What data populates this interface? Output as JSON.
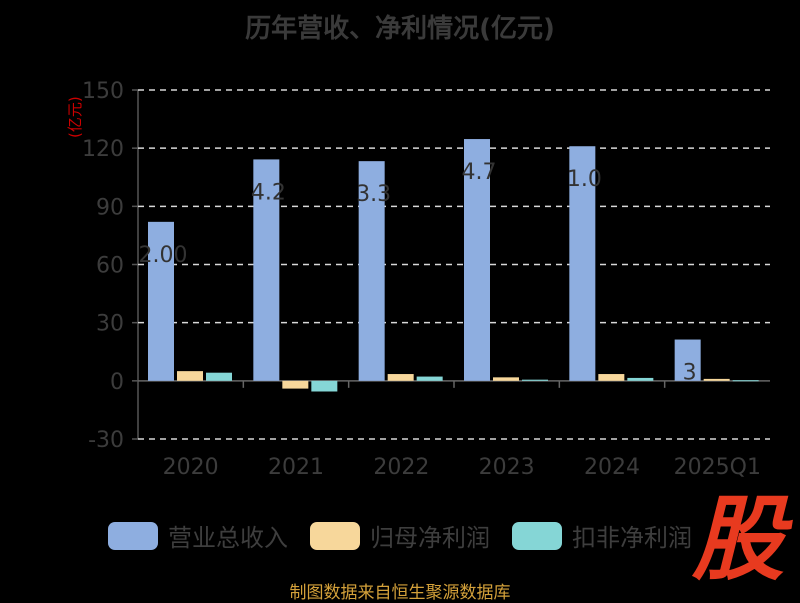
{
  "title": "历年营收、净利情况(亿元)",
  "y_unit": "(亿元)",
  "source": "制图数据来自恒生聚源数据库",
  "watermark": "股",
  "chart_data": {
    "type": "bar",
    "title": "历年营收、净利情况(亿元)",
    "ylabel": "(亿元)",
    "categories": [
      "2020",
      "2021",
      "2022",
      "2023",
      "2024",
      "2025Q1"
    ],
    "ylim": [
      -30,
      150
    ],
    "yticks": [
      150,
      120,
      90,
      60,
      30,
      0,
      -30
    ],
    "grid": true,
    "legend_position": "bottom",
    "series": [
      {
        "name": "营业总收入",
        "color": "#8eaee0",
        "values": [
          82,
          114.2,
          113.3,
          124.7,
          121.0,
          21.3
        ]
      },
      {
        "name": "归母净利润",
        "color": "#f7d79b",
        "values": [
          5,
          -4,
          3.5,
          1.8,
          3.5,
          1.0
        ]
      },
      {
        "name": "扣非净利润",
        "color": "#85d6d6",
        "values": [
          4.2,
          -5.5,
          2.2,
          0.6,
          1.5,
          0.3
        ]
      }
    ],
    "data_labels": [
      "2.00",
      "4.2",
      "3.3",
      "4.7",
      "1.0",
      "3"
    ]
  }
}
